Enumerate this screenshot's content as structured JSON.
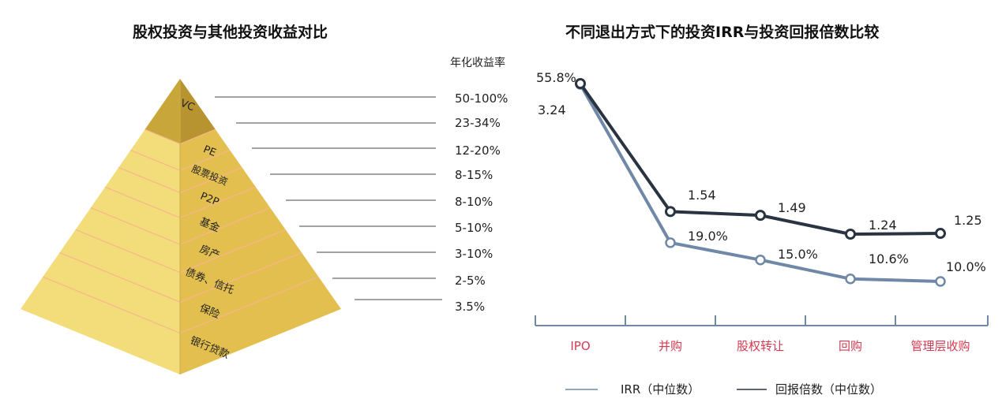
{
  "left_chart": {
    "title": "股权投资与其他投资收益对比",
    "column_header": "年化收益率",
    "colors": {
      "apex": "#c9a63a",
      "face": "#f3dc7a",
      "side": "#e2bf4f",
      "seam": "#f8b58e",
      "leader": "#444444"
    }
  },
  "right_chart": {
    "title": "不同退出方式下的投资IRR与投资回报倍数比较",
    "legend": {
      "irr": "IRR（中位数）",
      "multiple": "回报倍数（中位数）"
    },
    "colors": {
      "irr": "#6f88a6",
      "multiple": "#2a3341",
      "category_text": "#d23a52",
      "axis": "#6f88a6"
    }
  },
  "chart_data": [
    {
      "type": "table",
      "title": "股权投资与其他投资收益对比",
      "column_header": "年化收益率",
      "rows": [
        {
          "label": "VC",
          "value": "50-100%"
        },
        {
          "label": "PE",
          "value": "23-34%"
        },
        {
          "label": "股票投资",
          "value": "12-20%"
        },
        {
          "label": "P2P",
          "value": "8-15%"
        },
        {
          "label": "基金",
          "value": "8-10%"
        },
        {
          "label": "房产",
          "value": "5-10%"
        },
        {
          "label": "债券、信托",
          "value": "3-10%"
        },
        {
          "label": "保险",
          "value": "2-5%"
        },
        {
          "label": "银行贷款",
          "value": "3.5%"
        }
      ]
    },
    {
      "type": "line",
      "title": "不同退出方式下的投资IRR与投资回报倍数比较",
      "categories": [
        "IPO",
        "并购",
        "股权转让",
        "回购",
        "管理层收购"
      ],
      "series": [
        {
          "name": "IRR（中位数）",
          "values": [
            55.8,
            19.0,
            15.0,
            10.6,
            10.0
          ],
          "labels": [
            "55.8%",
            "19.0%",
            "15.0%",
            "10.6%",
            "10.0%"
          ]
        },
        {
          "name": "回报倍数（中位数）",
          "values": [
            3.24,
            1.54,
            1.49,
            1.24,
            1.25
          ],
          "labels": [
            "3.24",
            "1.54",
            "1.49",
            "1.24",
            "1.25"
          ]
        }
      ],
      "legend": "bottom"
    }
  ]
}
